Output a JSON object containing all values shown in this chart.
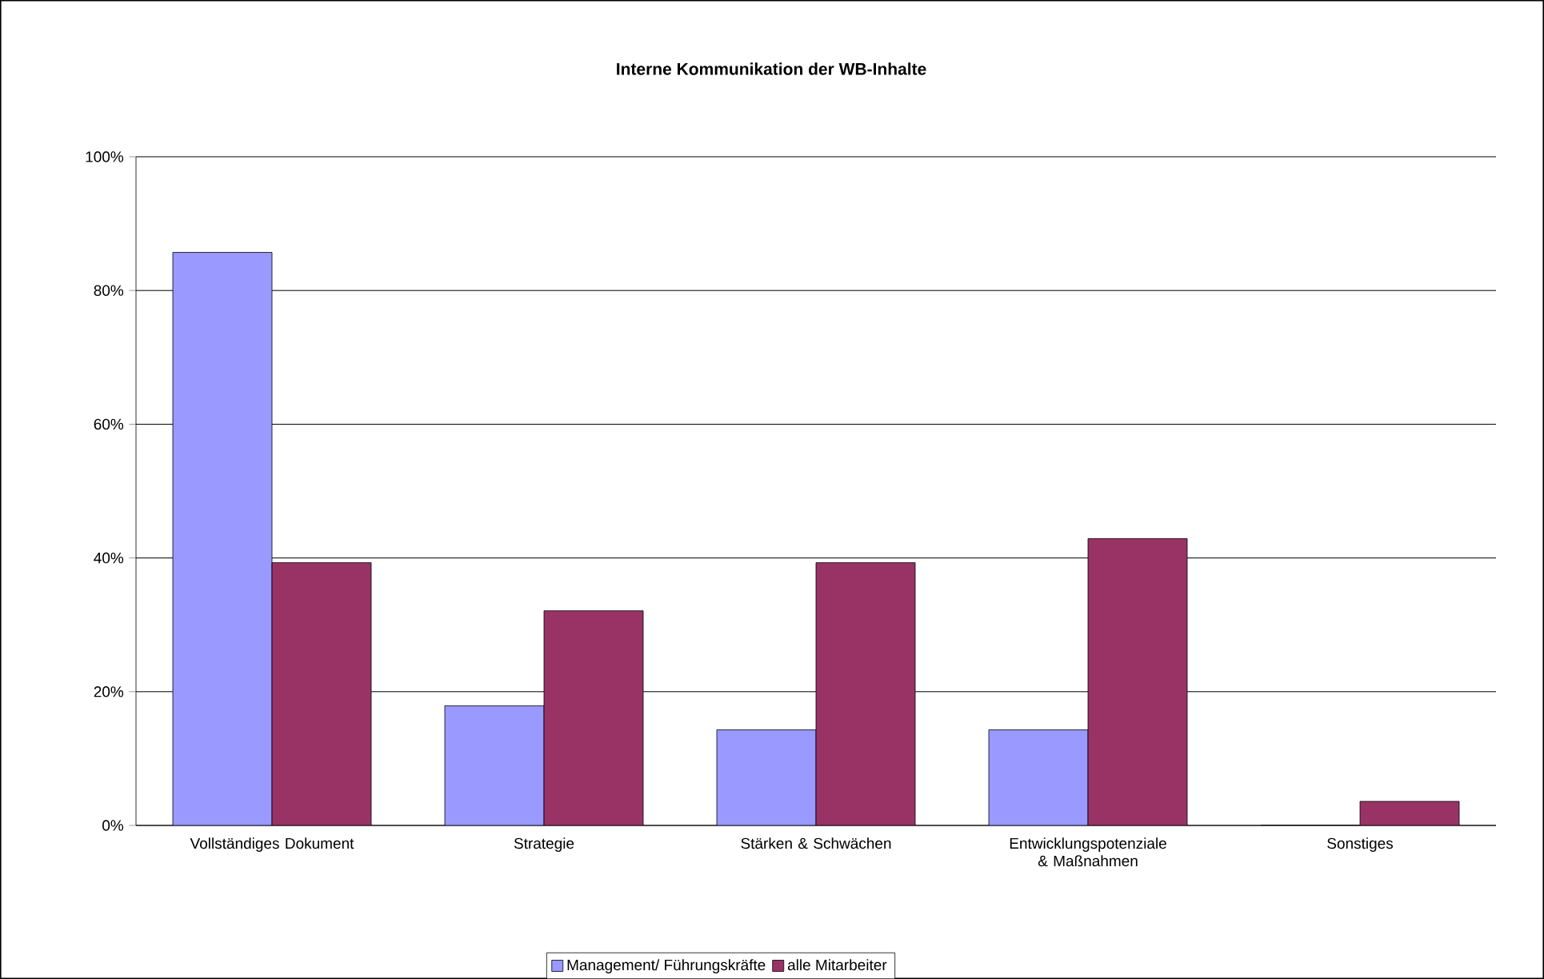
{
  "chart_data": {
    "type": "bar",
    "title": "Interne Kommunikation der WB-Inhalte",
    "categories": [
      "Vollständiges Dokument",
      "Strategie",
      "Stärken & Schwächen",
      "Entwicklungspotenziale & Maßnahmen",
      "Sonstiges"
    ],
    "series": [
      {
        "name": "Management/ Führungskräfte",
        "color": "#9999ff",
        "values": [
          85.7,
          17.9,
          14.3,
          14.3,
          0
        ]
      },
      {
        "name": "alle Mitarbeiter",
        "color": "#993366",
        "values": [
          39.3,
          32.1,
          39.3,
          42.9,
          3.6
        ]
      }
    ],
    "ylim": [
      0,
      100
    ],
    "yticks": [
      {
        "value": 0,
        "label": "0%"
      },
      {
        "value": 20,
        "label": "20%"
      },
      {
        "value": 40,
        "label": "40%"
      },
      {
        "value": 60,
        "label": "60%"
      },
      {
        "value": 80,
        "label": "80%"
      },
      {
        "value": 100,
        "label": "100%"
      }
    ],
    "grid": "y",
    "legend": "bottom"
  }
}
